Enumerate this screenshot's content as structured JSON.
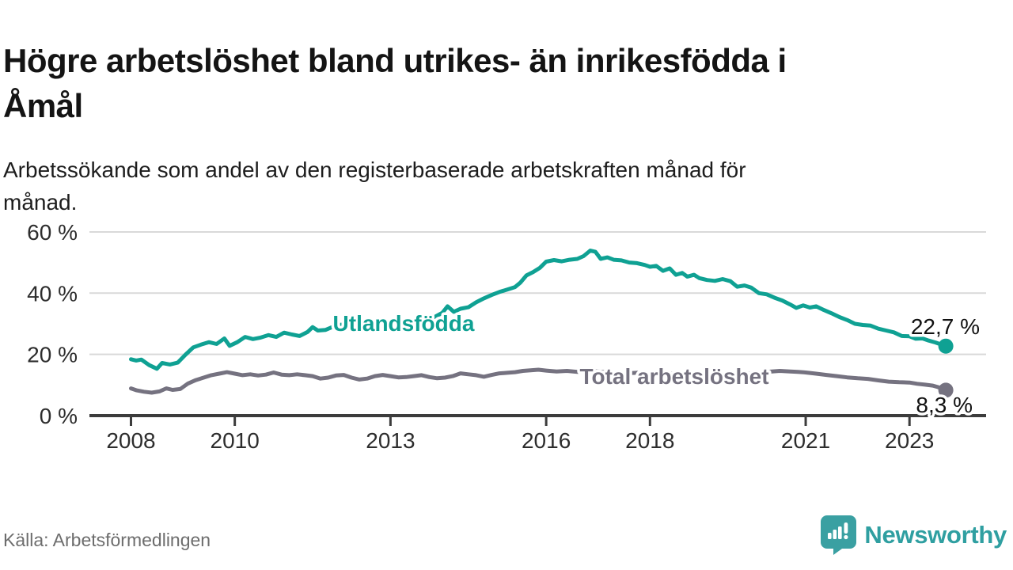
{
  "header": {
    "title": "Högre arbetslöshet bland utrikes- än inrikesfödda i\nÅmål",
    "subtitle": "Arbetssökande som andel av den registerbaserade arbetskraften månad för\nmånad."
  },
  "footer": {
    "source": "Källa: Arbetsförmedlingen",
    "logo_text": "Newsworthy"
  },
  "colors": {
    "teal": "#0fa193",
    "gray": "#757280",
    "axis": "#3c3c3c",
    "grid": "#d9d9d9",
    "logo_teal": "#3aa0a2"
  },
  "chart_data": {
    "type": "line",
    "title": "Högre arbetslöshet bland utrikes- än inrikesfödda i Åmål",
    "subtitle": "Arbetssökande som andel av den registerbaserade arbetskraften månad för månad.",
    "unit": "%",
    "x_domain": [
      2007.2,
      2024.5
    ],
    "y_domain": [
      0,
      60
    ],
    "grid": true,
    "legend_position": "inline-labels",
    "y_ticks": [
      {
        "value": 0,
        "label": "0 %"
      },
      {
        "value": 20,
        "label": "20 %"
      },
      {
        "value": 40,
        "label": "40 %"
      },
      {
        "value": 60,
        "label": "60 %"
      }
    ],
    "x_ticks": [
      {
        "year": 2008,
        "label": "2008"
      },
      {
        "year": 2010,
        "label": "2010"
      },
      {
        "year": 2013,
        "label": "2013"
      },
      {
        "year": 2016,
        "label": "2016"
      },
      {
        "year": 2018,
        "label": "2018"
      },
      {
        "year": 2021,
        "label": "2021"
      },
      {
        "year": 2023,
        "label": "2023"
      }
    ],
    "series": [
      {
        "name": "Utlandsfödda",
        "color": "#0fa193",
        "end_label": "22,7 %",
        "end_value": 22.7,
        "points": [
          [
            2008.0,
            18.4
          ],
          [
            2008.1,
            18.0
          ],
          [
            2008.2,
            18.3
          ],
          [
            2008.35,
            16.5
          ],
          [
            2008.5,
            15.3
          ],
          [
            2008.6,
            17.2
          ],
          [
            2008.75,
            16.7
          ],
          [
            2008.9,
            17.3
          ],
          [
            2009.05,
            19.9
          ],
          [
            2009.2,
            22.3
          ],
          [
            2009.35,
            23.2
          ],
          [
            2009.5,
            24.0
          ],
          [
            2009.65,
            23.4
          ],
          [
            2009.8,
            25.2
          ],
          [
            2009.9,
            22.8
          ],
          [
            2010.05,
            24.0
          ],
          [
            2010.2,
            25.7
          ],
          [
            2010.35,
            25.0
          ],
          [
            2010.5,
            25.5
          ],
          [
            2010.65,
            26.3
          ],
          [
            2010.8,
            25.7
          ],
          [
            2010.95,
            27.1
          ],
          [
            2011.1,
            26.5
          ],
          [
            2011.25,
            26.0
          ],
          [
            2011.4,
            27.3
          ],
          [
            2011.5,
            28.9
          ],
          [
            2011.6,
            27.8
          ],
          [
            2011.75,
            28.0
          ],
          [
            2011.9,
            29.1
          ],
          [
            2012.05,
            29.7
          ],
          [
            2012.2,
            28.6
          ],
          [
            2012.35,
            29.3
          ],
          [
            2012.5,
            28.4
          ],
          [
            2012.65,
            29.1
          ],
          [
            2012.8,
            29.7
          ],
          [
            2012.95,
            30.3
          ],
          [
            2013.1,
            29.7
          ],
          [
            2013.25,
            30.4
          ],
          [
            2013.4,
            29.9
          ],
          [
            2013.55,
            30.7
          ],
          [
            2013.7,
            31.3
          ],
          [
            2013.85,
            32.2
          ],
          [
            2014.0,
            33.6
          ],
          [
            2014.1,
            35.7
          ],
          [
            2014.22,
            33.9
          ],
          [
            2014.35,
            34.9
          ],
          [
            2014.5,
            35.4
          ],
          [
            2014.65,
            37.0
          ],
          [
            2014.8,
            38.3
          ],
          [
            2014.95,
            39.4
          ],
          [
            2015.1,
            40.4
          ],
          [
            2015.25,
            41.2
          ],
          [
            2015.4,
            42.0
          ],
          [
            2015.5,
            43.4
          ],
          [
            2015.62,
            45.8
          ],
          [
            2015.75,
            46.9
          ],
          [
            2015.88,
            48.3
          ],
          [
            2016.0,
            50.3
          ],
          [
            2016.15,
            50.8
          ],
          [
            2016.3,
            50.4
          ],
          [
            2016.45,
            50.9
          ],
          [
            2016.6,
            51.2
          ],
          [
            2016.72,
            52.1
          ],
          [
            2016.85,
            53.9
          ],
          [
            2016.95,
            53.5
          ],
          [
            2017.05,
            51.2
          ],
          [
            2017.18,
            51.7
          ],
          [
            2017.3,
            50.9
          ],
          [
            2017.45,
            50.7
          ],
          [
            2017.6,
            50.0
          ],
          [
            2017.75,
            49.8
          ],
          [
            2017.9,
            49.2
          ],
          [
            2018.0,
            48.6
          ],
          [
            2018.12,
            48.9
          ],
          [
            2018.25,
            47.3
          ],
          [
            2018.38,
            48.1
          ],
          [
            2018.5,
            46.0
          ],
          [
            2018.62,
            46.6
          ],
          [
            2018.72,
            45.4
          ],
          [
            2018.85,
            46.0
          ],
          [
            2018.95,
            44.9
          ],
          [
            2019.1,
            44.3
          ],
          [
            2019.25,
            44.0
          ],
          [
            2019.4,
            44.6
          ],
          [
            2019.55,
            43.9
          ],
          [
            2019.68,
            42.1
          ],
          [
            2019.82,
            42.5
          ],
          [
            2019.95,
            41.8
          ],
          [
            2020.1,
            40.0
          ],
          [
            2020.25,
            39.6
          ],
          [
            2020.4,
            38.5
          ],
          [
            2020.55,
            37.6
          ],
          [
            2020.7,
            36.3
          ],
          [
            2020.82,
            35.2
          ],
          [
            2020.95,
            36.0
          ],
          [
            2021.08,
            35.3
          ],
          [
            2021.2,
            35.7
          ],
          [
            2021.35,
            34.5
          ],
          [
            2021.5,
            33.4
          ],
          [
            2021.65,
            32.2
          ],
          [
            2021.8,
            31.2
          ],
          [
            2021.95,
            30.0
          ],
          [
            2022.1,
            29.6
          ],
          [
            2022.25,
            29.4
          ],
          [
            2022.4,
            28.4
          ],
          [
            2022.55,
            27.8
          ],
          [
            2022.7,
            27.2
          ],
          [
            2022.85,
            26.0
          ],
          [
            2023.0,
            25.9
          ],
          [
            2023.12,
            25.1
          ],
          [
            2023.25,
            25.2
          ],
          [
            2023.37,
            24.5
          ],
          [
            2023.5,
            23.9
          ],
          [
            2023.6,
            23.3
          ],
          [
            2023.7,
            22.7
          ]
        ]
      },
      {
        "name": "Total arbetslöshet",
        "color": "#757280",
        "end_label": "8,3 %",
        "end_value": 8.3,
        "points": [
          [
            2008.0,
            8.9
          ],
          [
            2008.1,
            8.3
          ],
          [
            2008.25,
            7.8
          ],
          [
            2008.4,
            7.5
          ],
          [
            2008.55,
            7.9
          ],
          [
            2008.68,
            8.9
          ],
          [
            2008.8,
            8.4
          ],
          [
            2008.95,
            8.7
          ],
          [
            2009.1,
            10.5
          ],
          [
            2009.25,
            11.6
          ],
          [
            2009.4,
            12.4
          ],
          [
            2009.55,
            13.2
          ],
          [
            2009.7,
            13.7
          ],
          [
            2009.85,
            14.2
          ],
          [
            2010.0,
            13.7
          ],
          [
            2010.15,
            13.2
          ],
          [
            2010.3,
            13.5
          ],
          [
            2010.45,
            13.1
          ],
          [
            2010.6,
            13.4
          ],
          [
            2010.75,
            14.1
          ],
          [
            2010.9,
            13.4
          ],
          [
            2011.05,
            13.2
          ],
          [
            2011.2,
            13.5
          ],
          [
            2011.35,
            13.2
          ],
          [
            2011.5,
            12.9
          ],
          [
            2011.65,
            12.1
          ],
          [
            2011.8,
            12.4
          ],
          [
            2011.95,
            13.1
          ],
          [
            2012.1,
            13.3
          ],
          [
            2012.25,
            12.4
          ],
          [
            2012.4,
            11.8
          ],
          [
            2012.55,
            12.1
          ],
          [
            2012.7,
            12.9
          ],
          [
            2012.85,
            13.3
          ],
          [
            2013.0,
            12.9
          ],
          [
            2013.15,
            12.5
          ],
          [
            2013.3,
            12.6
          ],
          [
            2013.45,
            12.9
          ],
          [
            2013.6,
            13.2
          ],
          [
            2013.75,
            12.6
          ],
          [
            2013.9,
            12.2
          ],
          [
            2014.05,
            12.4
          ],
          [
            2014.2,
            12.9
          ],
          [
            2014.35,
            13.8
          ],
          [
            2014.5,
            13.5
          ],
          [
            2014.65,
            13.2
          ],
          [
            2014.8,
            12.7
          ],
          [
            2014.95,
            13.3
          ],
          [
            2015.1,
            13.8
          ],
          [
            2015.25,
            14.0
          ],
          [
            2015.4,
            14.2
          ],
          [
            2015.55,
            14.6
          ],
          [
            2015.7,
            14.8
          ],
          [
            2015.85,
            15.0
          ],
          [
            2016.0,
            14.7
          ],
          [
            2016.2,
            14.4
          ],
          [
            2016.4,
            14.6
          ],
          [
            2016.6,
            14.3
          ],
          [
            2016.8,
            14.6
          ],
          [
            2017.0,
            14.4
          ],
          [
            2017.25,
            14.1
          ],
          [
            2017.5,
            13.8
          ],
          [
            2017.75,
            14.0
          ],
          [
            2018.0,
            13.7
          ],
          [
            2018.25,
            13.5
          ],
          [
            2018.5,
            13.8
          ],
          [
            2018.75,
            13.6
          ],
          [
            2019.0,
            13.4
          ],
          [
            2019.25,
            13.6
          ],
          [
            2019.5,
            13.3
          ],
          [
            2019.75,
            13.5
          ],
          [
            2020.0,
            13.8
          ],
          [
            2020.25,
            14.3
          ],
          [
            2020.5,
            14.6
          ],
          [
            2020.7,
            14.4
          ],
          [
            2020.85,
            14.3
          ],
          [
            2021.0,
            14.1
          ],
          [
            2021.2,
            13.7
          ],
          [
            2021.4,
            13.3
          ],
          [
            2021.6,
            12.9
          ],
          [
            2021.8,
            12.5
          ],
          [
            2022.0,
            12.2
          ],
          [
            2022.2,
            12.0
          ],
          [
            2022.4,
            11.5
          ],
          [
            2022.6,
            11.1
          ],
          [
            2022.8,
            10.9
          ],
          [
            2023.0,
            10.8
          ],
          [
            2023.15,
            10.4
          ],
          [
            2023.3,
            10.1
          ],
          [
            2023.45,
            9.8
          ],
          [
            2023.55,
            9.3
          ],
          [
            2023.7,
            8.3
          ]
        ]
      }
    ]
  }
}
